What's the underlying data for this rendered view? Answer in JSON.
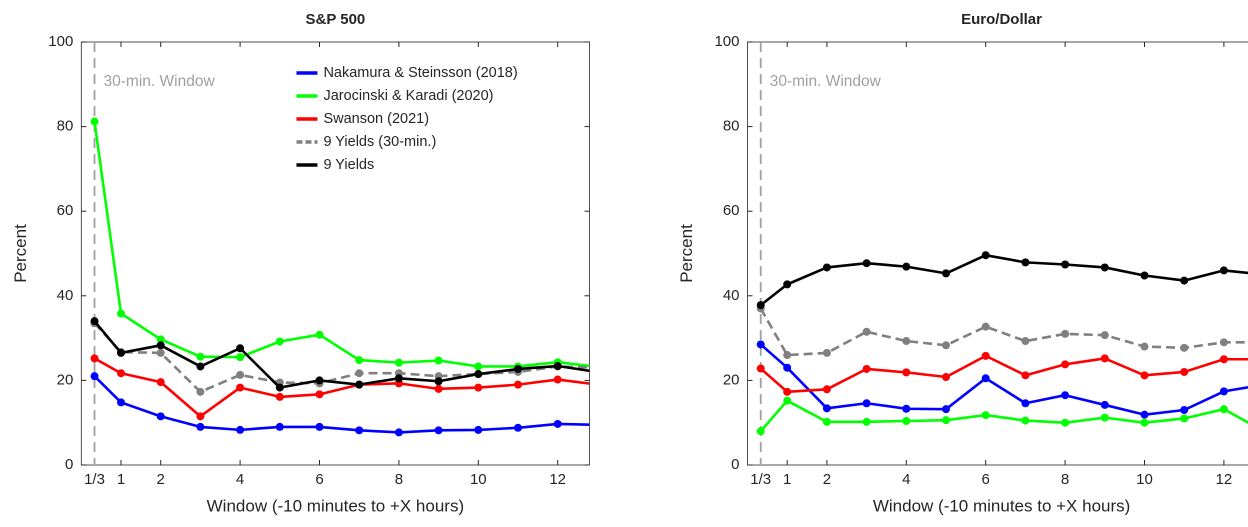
{
  "chart_data": [
    {
      "type": "line",
      "title": "S&P 500",
      "xlabel": "Window (-10 minutes to +X hours)",
      "ylabel": "Percent",
      "annotation": "30-min. Window",
      "window_line": 0.333,
      "legend": "upper right",
      "x": [
        0.333,
        1,
        2,
        3,
        4,
        5,
        6,
        7,
        8,
        9,
        10,
        11,
        12,
        13
      ],
      "xlim": [
        0,
        12.8
      ],
      "ylim": [
        0,
        100
      ],
      "xticks": [
        {
          "value": 0.333,
          "label": "1/3"
        },
        1,
        2,
        4,
        6,
        8,
        10,
        12
      ],
      "yticks": [
        0,
        20,
        40,
        60,
        80,
        100
      ],
      "series": [
        {
          "name": "Nakamura & Steinsson (2018)",
          "color": "#0000ff",
          "dash": false,
          "values": [
            21,
            14.8,
            11.5,
            9,
            8.3,
            9,
            9,
            8.2,
            7.7,
            8.2,
            8.3,
            8.8,
            9.7,
            9.5
          ]
        },
        {
          "name": "Jarocinski & Karadi (2020)",
          "color": "#00ff00",
          "dash": false,
          "values": [
            81.2,
            35.8,
            29.7,
            25.6,
            25.5,
            29.2,
            30.8,
            24.8,
            24.2,
            24.7,
            23.3,
            23.3,
            24.3,
            23.2
          ]
        },
        {
          "name": "Swanson (2021)",
          "color": "#ff0000",
          "dash": false,
          "values": [
            25.2,
            21.7,
            19.6,
            11.5,
            18.3,
            16.1,
            16.7,
            19,
            19.3,
            18,
            18.3,
            19,
            20.2,
            19
          ]
        },
        {
          "name": "9 Yields (30-min.)",
          "color": "#808080",
          "dash": true,
          "values": [
            33.5,
            26.7,
            26.5,
            17.3,
            21.3,
            19.5,
            19.3,
            21.7,
            21.7,
            21,
            21.5,
            22,
            23.3,
            23
          ]
        },
        {
          "name": "9 Yields",
          "color": "#000000",
          "dash": false,
          "values": [
            34,
            26.5,
            28.3,
            23.3,
            27.6,
            18.3,
            20,
            19,
            20.5,
            19.8,
            21.5,
            22.7,
            23.4,
            22
          ]
        }
      ]
    },
    {
      "type": "line",
      "title": "Euro/Dollar",
      "xlabel": "Window (-10 minutes to +X hours)",
      "ylabel": "Percent",
      "annotation": "30-min. Window",
      "window_line": 0.333,
      "x": [
        0.333,
        1,
        2,
        3,
        4,
        5,
        6,
        7,
        8,
        9,
        10,
        11,
        12,
        13
      ],
      "xlim": [
        0,
        12.8
      ],
      "ylim": [
        0,
        100
      ],
      "xticks": [
        {
          "value": 0.333,
          "label": "1/3"
        },
        1,
        2,
        4,
        6,
        8,
        10,
        12
      ],
      "yticks": [
        0,
        20,
        40,
        60,
        80,
        100
      ],
      "series": [
        {
          "color": "#0000ff",
          "dash": false,
          "values": [
            28.5,
            23,
            13.4,
            14.6,
            13.3,
            13.2,
            20.5,
            14.6,
            16.5,
            14.2,
            11.9,
            13,
            17.4,
            19
          ]
        },
        {
          "color": "#00ff00",
          "dash": false,
          "values": [
            8,
            15.2,
            10.2,
            10.2,
            10.4,
            10.6,
            11.8,
            10.5,
            10,
            11.2,
            10,
            11,
            13.2,
            8
          ]
        },
        {
          "color": "#ff0000",
          "dash": false,
          "values": [
            22.8,
            17.3,
            17.9,
            22.7,
            21.9,
            20.8,
            25.8,
            21.2,
            23.8,
            25.2,
            21.2,
            22,
            25,
            25
          ]
        },
        {
          "color": "#808080",
          "dash": true,
          "values": [
            37,
            26,
            26.5,
            31.5,
            29.3,
            28.3,
            32.7,
            29.3,
            31,
            30.7,
            28,
            27.7,
            29,
            29
          ]
        },
        {
          "color": "#000000",
          "dash": false,
          "values": [
            37.8,
            42.7,
            46.7,
            47.7,
            46.9,
            45.3,
            49.6,
            47.9,
            47.4,
            46.7,
            44.8,
            43.6,
            46,
            45
          ]
        }
      ]
    }
  ]
}
